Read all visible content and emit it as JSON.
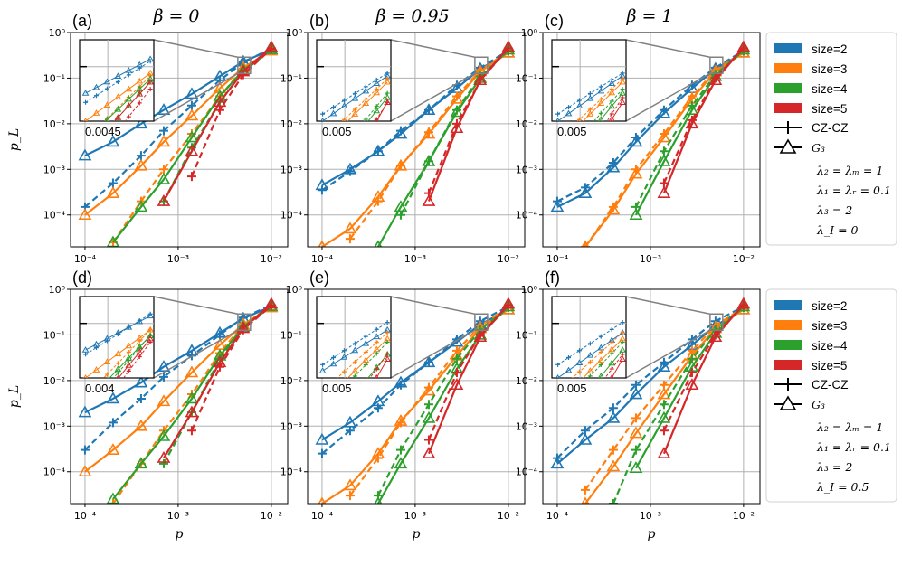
{
  "figure": {
    "column_titles": [
      "β = 0",
      "β = 0.95",
      "β = 1"
    ],
    "panel_labels": [
      "(a)",
      "(b)",
      "(c)",
      "(d)",
      "(e)",
      "(f)"
    ],
    "xlabel": "p",
    "ylabel": "p_L",
    "x_ticks": [
      "10⁻⁴",
      "10⁻³",
      "10⁻²"
    ],
    "y_ticks": [
      "10⁰",
      "10⁻¹",
      "10⁻²",
      "10⁻³",
      "10⁻⁴"
    ],
    "colors": {
      "size2": "#1f77b4",
      "size3": "#ff7f0e",
      "size4": "#2ca02c",
      "size5": "#d62728",
      "grid": "#b0b0b0",
      "inset_line": "#808080"
    }
  },
  "legends": [
    {
      "entries": [
        "size=2",
        "size=3",
        "size=4",
        "size=5",
        "CZ-CZ",
        "G₃"
      ],
      "params": [
        "λ₂ = λₘ = 1",
        "λ₁ = λᵣ = 0.1",
        "λ₃ = 2",
        "λ_I = 0"
      ]
    },
    {
      "entries": [
        "size=2",
        "size=3",
        "size=4",
        "size=5",
        "CZ-CZ",
        "G₃"
      ],
      "params": [
        "λ₂ = λₘ = 1",
        "λ₁ = λᵣ = 0.1",
        "λ₃ = 2",
        "λ_I = 0.5"
      ]
    }
  ],
  "insets": [
    {
      "tick_label": "0.0045"
    },
    {
      "tick_label": "0.005"
    },
    {
      "tick_label": "0.005"
    },
    {
      "tick_label": "0.004"
    },
    {
      "tick_label": "0.005"
    },
    {
      "tick_label": "0.005"
    }
  ],
  "chart_data": [
    {
      "type": "line",
      "title": "(a) β = 0",
      "xlabel": "p",
      "ylabel": "p_L",
      "xscale": "log",
      "yscale": "log",
      "xlim": [
        7e-05,
        0.015
      ],
      "ylim": [
        2e-05,
        1
      ],
      "x": [
        0.0001,
        0.0002,
        0.0004,
        0.0007,
        0.0014,
        0.0028,
        0.005,
        0.01
      ],
      "series": [
        {
          "name": "size=2 CZ-CZ",
          "values": [
            0.00015,
            0.0005,
            0.002,
            0.007,
            0.025,
            0.09,
            0.22,
            0.45
          ]
        },
        {
          "name": "size=2 G3",
          "values": [
            0.002,
            0.004,
            0.01,
            0.02,
            0.045,
            0.11,
            0.23,
            0.42
          ]
        },
        {
          "name": "size=3 CZ-CZ",
          "values": [
            null,
            2.5e-05,
            0.0002,
            0.001,
            0.006,
            0.04,
            0.16,
            0.42
          ]
        },
        {
          "name": "size=3 G3",
          "values": [
            0.0001,
            0.0003,
            0.0012,
            0.004,
            0.015,
            0.06,
            0.17,
            0.4
          ]
        },
        {
          "name": "size=4 CZ-CZ",
          "values": [
            null,
            null,
            null,
            0.0002,
            0.003,
            0.03,
            0.14,
            0.42
          ]
        },
        {
          "name": "size=4 G3",
          "values": [
            null,
            2.5e-05,
            0.00015,
            0.0006,
            0.005,
            0.04,
            0.15,
            0.43
          ]
        },
        {
          "name": "size=5 CZ-CZ",
          "values": [
            null,
            null,
            null,
            null,
            0.0007,
            0.02,
            0.12,
            0.44
          ]
        },
        {
          "name": "size=5 G3",
          "values": [
            null,
            null,
            null,
            0.0002,
            0.0025,
            0.03,
            0.14,
            0.48
          ]
        }
      ]
    },
    {
      "type": "line",
      "title": "(b) β = 0.95",
      "xlabel": "p",
      "ylabel": "p_L",
      "xscale": "log",
      "yscale": "log",
      "xlim": [
        7e-05,
        0.015
      ],
      "ylim": [
        2e-05,
        1
      ],
      "x": [
        0.0001,
        0.0002,
        0.0004,
        0.0007,
        0.0014,
        0.0028,
        0.005,
        0.01
      ],
      "series": [
        {
          "name": "size=2 CZ-CZ",
          "values": [
            0.00035,
            0.0009,
            0.0025,
            0.007,
            0.02,
            0.07,
            0.17,
            0.4
          ]
        },
        {
          "name": "size=2 G3",
          "values": [
            0.00045,
            0.001,
            0.0025,
            0.006,
            0.02,
            0.06,
            0.16,
            0.36
          ]
        },
        {
          "name": "size=3 CZ-CZ",
          "values": [
            null,
            3e-05,
            0.0002,
            0.0012,
            0.0065,
            0.04,
            0.15,
            0.38
          ]
        },
        {
          "name": "size=3 G3",
          "values": [
            2e-05,
            5e-05,
            0.00025,
            0.0012,
            0.006,
            0.035,
            0.14,
            0.36
          ]
        },
        {
          "name": "size=4 CZ-CZ",
          "values": [
            null,
            null,
            null,
            0.0001,
            0.0015,
            0.02,
            0.11,
            0.4
          ]
        },
        {
          "name": "size=4 G3",
          "values": [
            null,
            null,
            2e-05,
            0.00015,
            0.0015,
            0.018,
            0.1,
            0.42
          ]
        },
        {
          "name": "size=5 CZ-CZ",
          "values": [
            null,
            null,
            null,
            null,
            0.0003,
            0.01,
            0.09,
            0.45
          ]
        },
        {
          "name": "size=5 G3",
          "values": [
            null,
            null,
            null,
            null,
            0.0002,
            0.008,
            0.09,
            0.48
          ]
        }
      ]
    },
    {
      "type": "line",
      "title": "(c) β = 1",
      "xlabel": "p",
      "ylabel": "p_L",
      "xscale": "log",
      "yscale": "log",
      "xlim": [
        7e-05,
        0.015
      ],
      "ylim": [
        2e-05,
        1
      ],
      "x": [
        0.0001,
        0.0002,
        0.0004,
        0.0007,
        0.0014,
        0.0028,
        0.005,
        0.01
      ],
      "series": [
        {
          "name": "size=2 CZ-CZ",
          "values": [
            0.0002,
            0.0004,
            0.0014,
            0.005,
            0.02,
            0.07,
            0.17,
            0.4
          ]
        },
        {
          "name": "size=2 G3",
          "values": [
            0.00015,
            0.0003,
            0.0011,
            0.004,
            0.017,
            0.06,
            0.16,
            0.36
          ]
        },
        {
          "name": "size=3 CZ-CZ",
          "values": [
            null,
            2e-05,
            0.00015,
            0.001,
            0.006,
            0.04,
            0.15,
            0.38
          ]
        },
        {
          "name": "size=3 G3",
          "values": [
            null,
            2e-05,
            0.00013,
            0.0008,
            0.005,
            0.035,
            0.14,
            0.36
          ]
        },
        {
          "name": "size=4 CZ-CZ",
          "values": [
            null,
            null,
            null,
            0.00015,
            0.0025,
            0.025,
            0.12,
            0.4
          ]
        },
        {
          "name": "size=4 G3",
          "values": [
            null,
            null,
            null,
            0.0001,
            0.0015,
            0.02,
            0.11,
            0.42
          ]
        },
        {
          "name": "size=5 CZ-CZ",
          "values": [
            null,
            null,
            null,
            null,
            0.0005,
            0.012,
            0.1,
            0.45
          ]
        },
        {
          "name": "size=5 G3",
          "values": [
            null,
            null,
            null,
            null,
            0.0003,
            0.01,
            0.09,
            0.48
          ]
        }
      ]
    },
    {
      "type": "line",
      "title": "(d)",
      "xlabel": "p",
      "ylabel": "p_L",
      "xscale": "log",
      "yscale": "log",
      "xlim": [
        7e-05,
        0.015
      ],
      "ylim": [
        2e-05,
        1
      ],
      "x": [
        0.0001,
        0.0002,
        0.0004,
        0.0007,
        0.0014,
        0.0028,
        0.005,
        0.01
      ],
      "series": [
        {
          "name": "size=2 CZ-CZ",
          "values": [
            0.0003,
            0.0012,
            0.004,
            0.012,
            0.035,
            0.1,
            0.24,
            0.45
          ]
        },
        {
          "name": "size=2 G3",
          "values": [
            0.002,
            0.004,
            0.009,
            0.02,
            0.045,
            0.11,
            0.23,
            0.42
          ]
        },
        {
          "name": "size=3 CZ-CZ",
          "values": [
            null,
            2e-05,
            0.00015,
            0.0008,
            0.005,
            0.04,
            0.17,
            0.42
          ]
        },
        {
          "name": "size=3 G3",
          "values": [
            0.0001,
            0.0003,
            0.001,
            0.0035,
            0.015,
            0.06,
            0.17,
            0.4
          ]
        },
        {
          "name": "size=4 CZ-CZ",
          "values": [
            null,
            null,
            null,
            0.00015,
            0.002,
            0.03,
            0.15,
            0.42
          ]
        },
        {
          "name": "size=4 G3",
          "values": [
            null,
            2.5e-05,
            0.00015,
            0.0006,
            0.004,
            0.035,
            0.15,
            0.43
          ]
        },
        {
          "name": "size=5 CZ-CZ",
          "values": [
            null,
            null,
            null,
            null,
            0.0008,
            0.02,
            0.13,
            0.44
          ]
        },
        {
          "name": "size=5 G3",
          "values": [
            null,
            null,
            null,
            0.0002,
            0.002,
            0.025,
            0.14,
            0.48
          ]
        }
      ]
    },
    {
      "type": "line",
      "title": "(e)",
      "xlabel": "p",
      "ylabel": "p_L",
      "xscale": "log",
      "yscale": "log",
      "xlim": [
        7e-05,
        0.015
      ],
      "ylim": [
        2e-05,
        1
      ],
      "x": [
        0.0001,
        0.0002,
        0.0004,
        0.0007,
        0.0014,
        0.0028,
        0.005,
        0.01
      ],
      "series": [
        {
          "name": "size=2 CZ-CZ",
          "values": [
            0.00025,
            0.0008,
            0.0025,
            0.008,
            0.025,
            0.08,
            0.2,
            0.42
          ]
        },
        {
          "name": "size=2 G3",
          "values": [
            0.0005,
            0.0012,
            0.0035,
            0.009,
            0.025,
            0.07,
            0.17,
            0.36
          ]
        },
        {
          "name": "size=3 CZ-CZ",
          "values": [
            null,
            3e-05,
            0.0002,
            0.0012,
            0.007,
            0.045,
            0.16,
            0.4
          ]
        },
        {
          "name": "size=3 G3",
          "values": [
            2e-05,
            5e-05,
            0.00025,
            0.0013,
            0.006,
            0.035,
            0.14,
            0.36
          ]
        },
        {
          "name": "size=4 CZ-CZ",
          "values": [
            null,
            null,
            3e-05,
            0.0003,
            0.003,
            0.03,
            0.13,
            0.4
          ]
        },
        {
          "name": "size=4 G3",
          "values": [
            null,
            null,
            2e-05,
            0.00015,
            0.0015,
            0.018,
            0.1,
            0.42
          ]
        },
        {
          "name": "size=5 CZ-CZ",
          "values": [
            null,
            null,
            null,
            null,
            0.0005,
            0.015,
            0.1,
            0.45
          ]
        },
        {
          "name": "size=5 G3",
          "values": [
            null,
            null,
            null,
            null,
            0.00025,
            0.008,
            0.09,
            0.48
          ]
        }
      ]
    },
    {
      "type": "line",
      "title": "(f)",
      "xlabel": "p",
      "ylabel": "p_L",
      "xscale": "log",
      "yscale": "log",
      "xlim": [
        7e-05,
        0.015
      ],
      "ylim": [
        2e-05,
        1
      ],
      "x": [
        0.0001,
        0.0002,
        0.0004,
        0.0007,
        0.0014,
        0.0028,
        0.005,
        0.01
      ],
      "series": [
        {
          "name": "size=2 CZ-CZ",
          "values": [
            0.0002,
            0.0008,
            0.0025,
            0.008,
            0.025,
            0.08,
            0.2,
            0.42
          ]
        },
        {
          "name": "size=2 G3",
          "values": [
            0.00015,
            0.0005,
            0.0015,
            0.005,
            0.02,
            0.06,
            0.16,
            0.36
          ]
        },
        {
          "name": "size=3 CZ-CZ",
          "values": [
            null,
            4e-05,
            0.0003,
            0.0015,
            0.008,
            0.045,
            0.16,
            0.4
          ]
        },
        {
          "name": "size=3 G3",
          "values": [
            null,
            2e-05,
            0.00013,
            0.0007,
            0.005,
            0.035,
            0.14,
            0.36
          ]
        },
        {
          "name": "size=4 CZ-CZ",
          "values": [
            null,
            null,
            2e-05,
            0.0003,
            0.003,
            0.03,
            0.13,
            0.4
          ]
        },
        {
          "name": "size=4 G3",
          "values": [
            null,
            null,
            null,
            0.00012,
            0.0015,
            0.02,
            0.11,
            0.42
          ]
        },
        {
          "name": "size=5 CZ-CZ",
          "values": [
            null,
            null,
            null,
            null,
            0.0008,
            0.015,
            0.1,
            0.45
          ]
        },
        {
          "name": "size=5 G3",
          "values": [
            null,
            null,
            null,
            null,
            0.00025,
            0.008,
            0.09,
            0.48
          ]
        }
      ]
    }
  ]
}
